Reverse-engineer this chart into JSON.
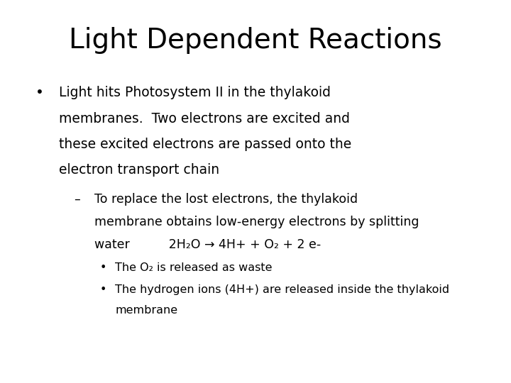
{
  "title": "Light Dependent Reactions",
  "background_color": "#ffffff",
  "text_color": "#000000",
  "title_fontsize": 28,
  "body_fontsize": 13.5,
  "sub_fontsize": 12.5,
  "subsub_fontsize": 11.5,
  "font_family": "DejaVu Sans"
}
